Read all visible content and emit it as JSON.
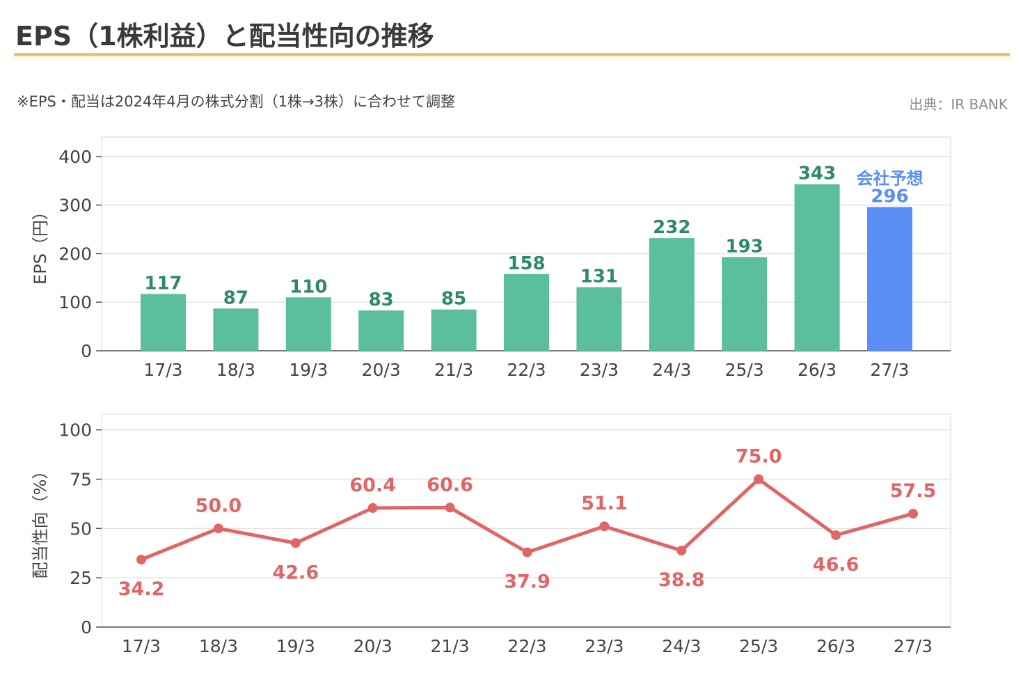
{
  "title": "EPS（1株利益）と配当性向の推移",
  "note": "※EPS・配当は2024年4月の株式分割（1株→3株）に合わせて調整",
  "source": "出典：IR BANK",
  "colors": {
    "bar": "#5bbf9b",
    "forecast_bar": "#5b8ef5",
    "bar_label": "#2e8a66",
    "line": "#e06666",
    "accent_rule": "#f0c36a",
    "grid": "#e3e3e3"
  },
  "chart_data": [
    {
      "type": "bar",
      "categories": [
        "17/3",
        "18/3",
        "19/3",
        "20/3",
        "21/3",
        "22/3",
        "23/3",
        "24/3",
        "25/3",
        "26/3",
        "27/3"
      ],
      "values": [
        117,
        87,
        110,
        83,
        85,
        158,
        131,
        232,
        193,
        343,
        296
      ],
      "forecast_index": 10,
      "forecast_label": "会社予想",
      "ylabel": "EPS（円）",
      "ylim": [
        0,
        440
      ],
      "yticks": [
        0,
        100,
        200,
        300,
        400
      ],
      "grid": true
    },
    {
      "type": "line",
      "categories": [
        "17/3",
        "18/3",
        "19/3",
        "20/3",
        "21/3",
        "22/3",
        "23/3",
        "24/3",
        "25/3",
        "26/3",
        "27/3"
      ],
      "values": [
        34.2,
        50.0,
        42.6,
        60.4,
        60.6,
        37.9,
        51.1,
        38.8,
        75.0,
        46.6,
        57.5
      ],
      "value_labels": [
        "34.2",
        "50.0",
        "42.6",
        "60.4",
        "60.6",
        "37.9",
        "51.1",
        "38.8",
        "75.0",
        "46.6",
        "57.5"
      ],
      "label_positions": [
        "below",
        "above",
        "below",
        "above",
        "above",
        "below",
        "above",
        "below",
        "above",
        "below",
        "above"
      ],
      "ylabel": "配当性向（%）",
      "ylim": [
        0,
        108
      ],
      "yticks": [
        0,
        25,
        50,
        75,
        100
      ],
      "grid": true
    }
  ]
}
